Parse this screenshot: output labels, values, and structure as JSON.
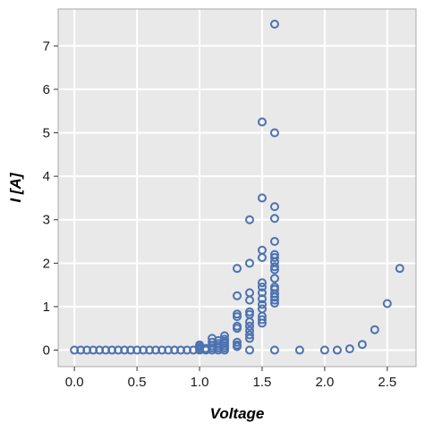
{
  "chart_data": {
    "type": "scatter",
    "title": "",
    "xlabel": "Voltage",
    "ylabel": "I [A]",
    "xlim": [
      -0.13,
      2.73
    ],
    "ylim": [
      -0.38,
      7.85
    ],
    "xticks": [
      0.0,
      0.5,
      1.0,
      1.5,
      2.0,
      2.5
    ],
    "xtick_labels": [
      "0.0",
      "0.5",
      "1.0",
      "1.5",
      "2.0",
      "2.5"
    ],
    "yticks": [
      0,
      1,
      2,
      3,
      4,
      5,
      6,
      7
    ],
    "ytick_labels": [
      "0",
      "1",
      "2",
      "3",
      "4",
      "5",
      "6",
      "7"
    ],
    "grid": true,
    "marker": "hollow-circle",
    "series": [
      {
        "marker_color": "#4c72b0",
        "points": [
          [
            0.0,
            0.0
          ],
          [
            0.05,
            0.0
          ],
          [
            0.1,
            0.0
          ],
          [
            0.15,
            0.0
          ],
          [
            0.2,
            0.0
          ],
          [
            0.25,
            0.0
          ],
          [
            0.3,
            0.0
          ],
          [
            0.35,
            0.0
          ],
          [
            0.4,
            0.0
          ],
          [
            0.45,
            0.0
          ],
          [
            0.5,
            0.0
          ],
          [
            0.55,
            0.0
          ],
          [
            0.6,
            0.0
          ],
          [
            0.65,
            0.0
          ],
          [
            0.7,
            0.0
          ],
          [
            0.75,
            0.0
          ],
          [
            0.8,
            0.0
          ],
          [
            0.85,
            0.0
          ],
          [
            0.9,
            0.0
          ],
          [
            0.95,
            0.0
          ],
          [
            1.0,
            0.0
          ],
          [
            1.0,
            0.04
          ],
          [
            1.0,
            0.08
          ],
          [
            1.0,
            0.12
          ],
          [
            1.05,
            0.0
          ],
          [
            1.05,
            0.04
          ],
          [
            1.1,
            0.0
          ],
          [
            1.1,
            0.05
          ],
          [
            1.1,
            0.1
          ],
          [
            1.1,
            0.18
          ],
          [
            1.1,
            0.27
          ],
          [
            1.15,
            0.0
          ],
          [
            1.15,
            0.05
          ],
          [
            1.15,
            0.1
          ],
          [
            1.15,
            0.15
          ],
          [
            1.15,
            0.22
          ],
          [
            1.2,
            0.0
          ],
          [
            1.2,
            0.05
          ],
          [
            1.2,
            0.1
          ],
          [
            1.2,
            0.15
          ],
          [
            1.2,
            0.2
          ],
          [
            1.2,
            0.25
          ],
          [
            1.2,
            0.33
          ],
          [
            1.3,
            0.08
          ],
          [
            1.3,
            0.12
          ],
          [
            1.3,
            0.18
          ],
          [
            1.3,
            0.5
          ],
          [
            1.3,
            0.55
          ],
          [
            1.3,
            0.77
          ],
          [
            1.3,
            0.83
          ],
          [
            1.3,
            1.25
          ],
          [
            1.3,
            1.88
          ],
          [
            1.4,
            0.0
          ],
          [
            1.4,
            0.27
          ],
          [
            1.4,
            0.35
          ],
          [
            1.4,
            0.45
          ],
          [
            1.4,
            0.55
          ],
          [
            1.4,
            0.65
          ],
          [
            1.4,
            0.82
          ],
          [
            1.4,
            0.88
          ],
          [
            1.4,
            1.15
          ],
          [
            1.4,
            1.32
          ],
          [
            1.4,
            2.0
          ],
          [
            1.4,
            3.0
          ],
          [
            1.5,
            0.62
          ],
          [
            1.5,
            0.7
          ],
          [
            1.5,
            0.78
          ],
          [
            1.5,
            0.95
          ],
          [
            1.5,
            1.05
          ],
          [
            1.5,
            1.18
          ],
          [
            1.5,
            1.32
          ],
          [
            1.5,
            1.45
          ],
          [
            1.5,
            1.55
          ],
          [
            1.5,
            2.13
          ],
          [
            1.5,
            2.3
          ],
          [
            1.5,
            3.5
          ],
          [
            1.5,
            5.25
          ],
          [
            1.6,
            0.0
          ],
          [
            1.6,
            1.08
          ],
          [
            1.6,
            1.15
          ],
          [
            1.6,
            1.22
          ],
          [
            1.6,
            1.3
          ],
          [
            1.6,
            1.4
          ],
          [
            1.6,
            1.45
          ],
          [
            1.6,
            1.65
          ],
          [
            1.6,
            1.85
          ],
          [
            1.6,
            1.92
          ],
          [
            1.6,
            2.03
          ],
          [
            1.6,
            2.13
          ],
          [
            1.6,
            2.2
          ],
          [
            1.6,
            2.5
          ],
          [
            1.6,
            3.03
          ],
          [
            1.6,
            3.3
          ],
          [
            1.6,
            5.0
          ],
          [
            1.6,
            7.5
          ],
          [
            1.8,
            0.0
          ],
          [
            2.0,
            0.0
          ],
          [
            2.1,
            0.0
          ],
          [
            2.2,
            0.03
          ],
          [
            2.3,
            0.13
          ],
          [
            2.4,
            0.47
          ],
          [
            2.5,
            1.07
          ],
          [
            2.6,
            1.88
          ]
        ]
      }
    ]
  }
}
